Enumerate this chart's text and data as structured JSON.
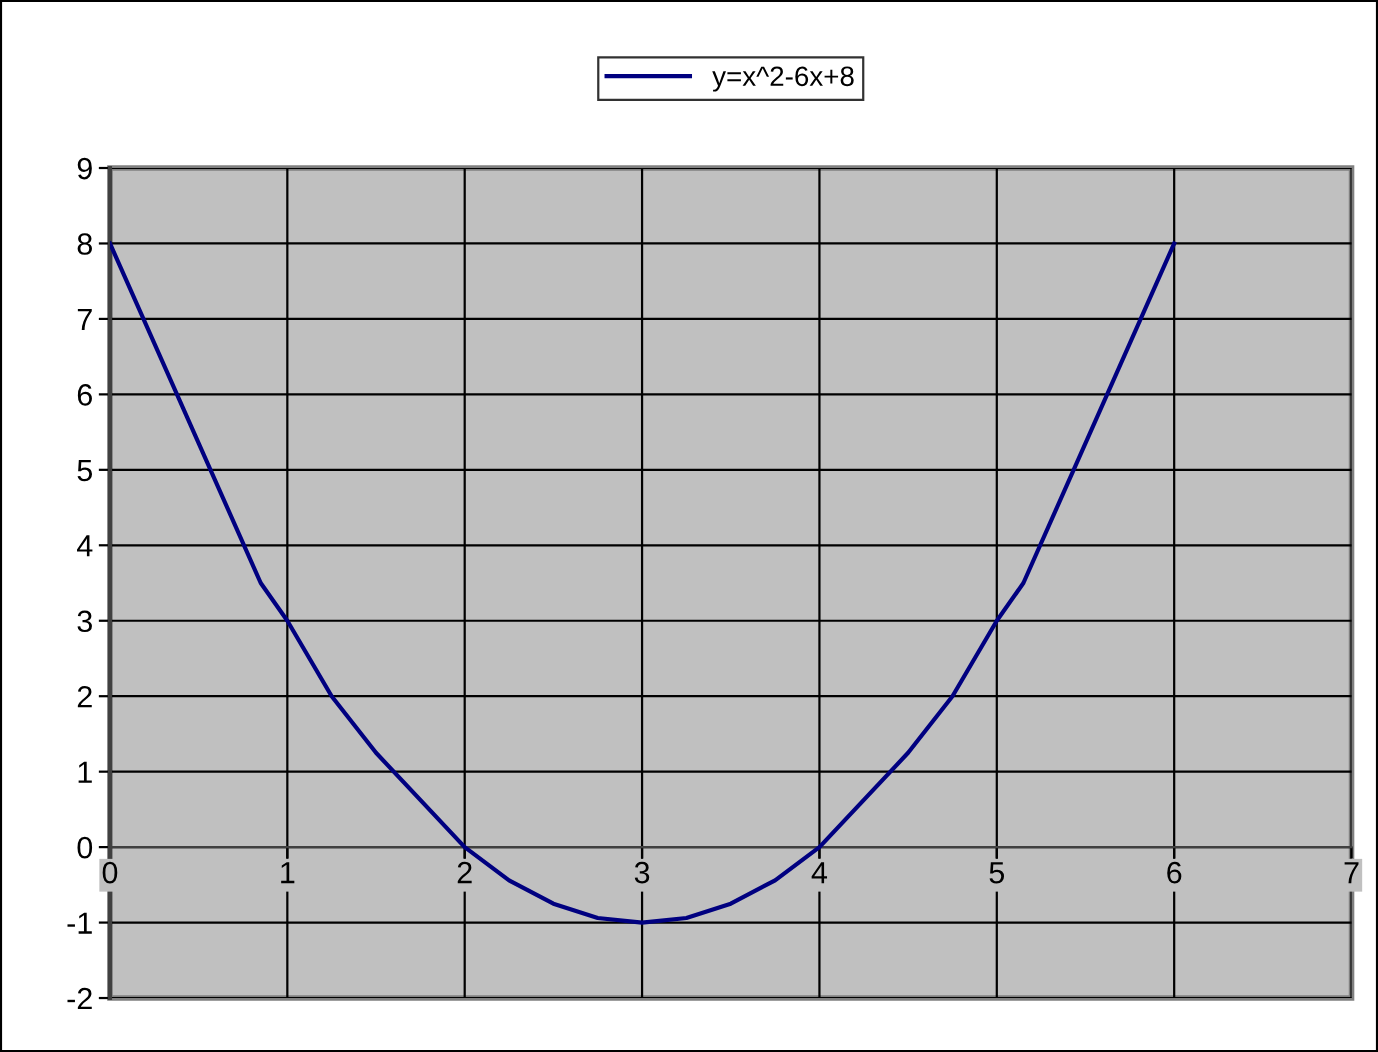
{
  "chart_data": {
    "type": "line",
    "x": [
      0,
      0.85,
      1,
      1.25,
      1.5,
      2,
      2.25,
      2.5,
      2.75,
      3,
      3.25,
      3.5,
      3.75,
      4,
      4.5,
      4.75,
      5,
      5.15,
      6
    ],
    "series": [
      {
        "name": "y=x^2-6x+8",
        "color": "#000080",
        "values": [
          8,
          3.5,
          3,
          2,
          1.25,
          0,
          -0.44,
          -0.75,
          -0.94,
          -1,
          -0.94,
          -0.75,
          -0.44,
          0,
          1.25,
          2,
          3,
          3.5,
          8
        ]
      }
    ],
    "xlim": [
      0,
      7
    ],
    "xticks": [
      0,
      1,
      2,
      3,
      4,
      5,
      6,
      7
    ],
    "ylim": [
      -2,
      9
    ],
    "yticks": [
      -2,
      -1,
      0,
      1,
      2,
      3,
      4,
      5,
      6,
      7,
      8,
      9
    ],
    "grid": true,
    "legend": "top",
    "marker": "none",
    "line_style": "solid"
  }
}
